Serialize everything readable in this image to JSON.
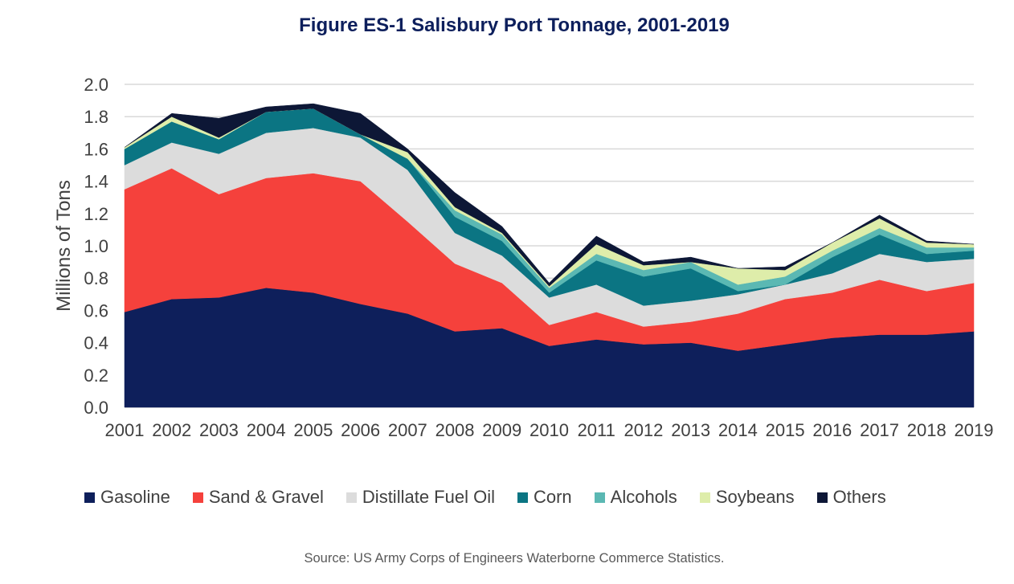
{
  "title": "Figure ES-1 Salisbury Port Tonnage, 2001-2019",
  "source": "Source: US Army Corps of Engineers Waterborne Commerce Statistics.",
  "chart_data": {
    "type": "area",
    "stacked": true,
    "title": "Figure ES-1 Salisbury Port Tonnage, 2001-2019",
    "xlabel": "",
    "ylabel": "Millions of Tons",
    "ylim": [
      0,
      2.0
    ],
    "yticks": [
      "0.0",
      "0.2",
      "0.4",
      "0.6",
      "0.8",
      "1.0",
      "1.2",
      "1.4",
      "1.6",
      "1.8",
      "2.0"
    ],
    "grid": true,
    "legend_position": "bottom",
    "categories": [
      "2001",
      "2002",
      "2003",
      "2004",
      "2005",
      "2006",
      "2007",
      "2008",
      "2009",
      "2010",
      "2011",
      "2012",
      "2013",
      "2014",
      "2015",
      "2016",
      "2017",
      "2018",
      "2019"
    ],
    "series": [
      {
        "name": "Gasoline",
        "color": "#0e1f5b",
        "values": [
          0.59,
          0.67,
          0.68,
          0.74,
          0.71,
          0.64,
          0.58,
          0.47,
          0.49,
          0.38,
          0.42,
          0.39,
          0.4,
          0.35,
          0.39,
          0.43,
          0.45,
          0.45,
          0.47
        ]
      },
      {
        "name": "Sand & Gravel",
        "color": "#f5413c",
        "values": [
          0.76,
          0.81,
          0.64,
          0.68,
          0.74,
          0.76,
          0.57,
          0.42,
          0.28,
          0.13,
          0.17,
          0.11,
          0.13,
          0.23,
          0.28,
          0.28,
          0.34,
          0.27,
          0.3
        ]
      },
      {
        "name": "Distillate Fuel Oil",
        "color": "#dcdcdc",
        "values": [
          0.15,
          0.16,
          0.25,
          0.28,
          0.28,
          0.27,
          0.32,
          0.19,
          0.17,
          0.17,
          0.17,
          0.13,
          0.13,
          0.12,
          0.09,
          0.12,
          0.16,
          0.18,
          0.15
        ]
      },
      {
        "name": "Corn",
        "color": "#0b7583",
        "values": [
          0.1,
          0.13,
          0.09,
          0.13,
          0.12,
          0.02,
          0.07,
          0.1,
          0.09,
          0.03,
          0.15,
          0.18,
          0.2,
          0.02,
          0.0,
          0.1,
          0.12,
          0.05,
          0.05
        ]
      },
      {
        "name": "Alcohols",
        "color": "#5bb8b3",
        "values": [
          0.0,
          0.0,
          0.0,
          0.0,
          0.0,
          0.0,
          0.0,
          0.04,
          0.04,
          0.03,
          0.04,
          0.04,
          0.04,
          0.04,
          0.05,
          0.04,
          0.04,
          0.04,
          0.02
        ]
      },
      {
        "name": "Soybeans",
        "color": "#deedaa",
        "values": [
          0.01,
          0.03,
          0.01,
          0.0,
          0.0,
          0.0,
          0.04,
          0.02,
          0.01,
          0.01,
          0.06,
          0.03,
          0.0,
          0.1,
          0.04,
          0.05,
          0.06,
          0.03,
          0.02
        ]
      },
      {
        "name": "Others",
        "color": "#0d1736",
        "values": [
          0.0,
          0.02,
          0.12,
          0.03,
          0.03,
          0.13,
          0.02,
          0.09,
          0.04,
          0.02,
          0.05,
          0.02,
          0.03,
          0.0,
          0.02,
          0.0,
          0.02,
          0.01,
          0.0
        ]
      }
    ]
  }
}
